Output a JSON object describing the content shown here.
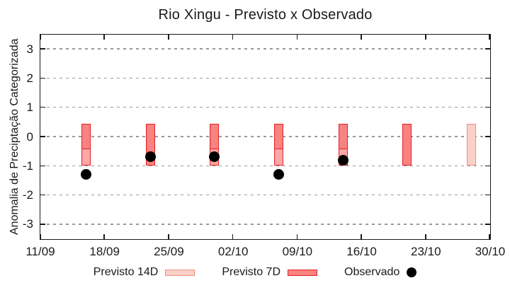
{
  "chart_data": {
    "type": "bar",
    "title": "Rio Xingu - Previsto x Observado",
    "xlabel": "",
    "ylabel": "Anomalia de Preciptação Categorizada",
    "ylim": [
      -3.5,
      3.5
    ],
    "y_ticks": [
      -3,
      -2,
      -1,
      0,
      1,
      2,
      3
    ],
    "x_ticks": [
      "11/09",
      "18/09",
      "25/09",
      "02/10",
      "09/10",
      "16/10",
      "23/10",
      "30/10"
    ],
    "grid": "horizontal-dashed",
    "legend_position": "bottom",
    "overlap_fill": "#fba8a8",
    "series": [
      {
        "name": "Previsto 14D",
        "type": "range-bar",
        "color": "#fad0c8",
        "border": "#f0907e",
        "points": [
          {
            "date": "16/09",
            "high": 0.43,
            "low": -1.0
          },
          {
            "date": "23/09",
            "high": 0.43,
            "low": -1.0
          },
          {
            "date": "30/09",
            "high": 0.43,
            "low": -1.0
          },
          {
            "date": "07/10",
            "high": 0.43,
            "low": -1.0
          },
          {
            "date": "14/10",
            "high": 0.43,
            "low": -1.0
          },
          {
            "date": "21/10",
            "high": 0.43,
            "low": -1.0
          },
          {
            "date": "28/10",
            "high": 0.43,
            "low": -1.0
          }
        ]
      },
      {
        "name": "Previsto 7D",
        "type": "range-bar",
        "color": "#f98282",
        "border": "#e32222",
        "points": [
          {
            "date": "16/09",
            "high": 0.43,
            "low": -0.43
          },
          {
            "date": "23/09",
            "high": 0.43,
            "low": -1.0
          },
          {
            "date": "30/09",
            "high": 0.43,
            "low": -0.43
          },
          {
            "date": "07/10",
            "high": 0.43,
            "low": -0.43
          },
          {
            "date": "14/10",
            "high": 0.43,
            "low": -0.43
          },
          {
            "date": "21/10",
            "high": 0.43,
            "low": -1.0
          }
        ]
      },
      {
        "name": "Observado",
        "type": "scatter",
        "color": "#000000",
        "points": [
          {
            "date": "16/09",
            "value": -1.3
          },
          {
            "date": "23/09",
            "value": -0.7
          },
          {
            "date": "30/09",
            "value": -0.7
          },
          {
            "date": "07/10",
            "value": -1.3
          },
          {
            "date": "14/10",
            "value": -0.8
          }
        ]
      }
    ]
  },
  "legend": {
    "previsto14d_label": "Previsto 14D",
    "previsto7d_label": "Previsto 7D",
    "observado_label": "Observado"
  }
}
